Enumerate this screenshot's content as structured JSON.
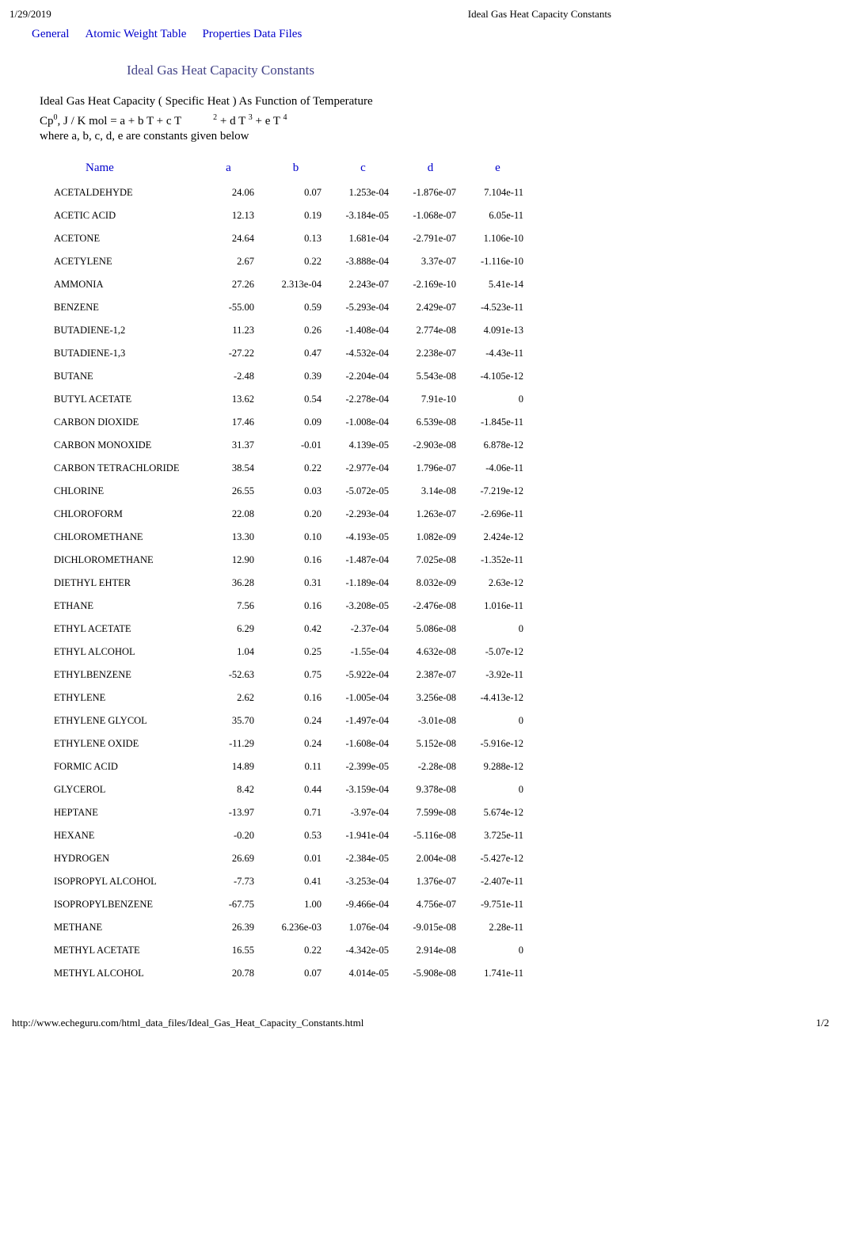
{
  "header": {
    "date": "1/29/2019",
    "title": "Ideal Gas Heat Capacity Constants"
  },
  "nav": {
    "general": "General",
    "atomic_weight": "Atomic Weight Table",
    "properties": "Properties Data Files"
  },
  "page_title": "Ideal Gas Heat Capacity Constants",
  "description": "Ideal Gas Heat Capacity ( Specific Heat ) As Function of Temperature",
  "formula_prefix": "Cp",
  "formula_sup0": "0",
  "formula_part1": ", J / K mol = a + b T + c T",
  "formula_sup2": "2",
  "formula_part2": " + d T ",
  "formula_sup3": "3",
  "formula_part3": " + e T ",
  "formula_sup4": "4",
  "sub_desc": "where a, b, c, d, e are constants given below",
  "table": {
    "headers": {
      "name": "Name",
      "a": "a",
      "b": "b",
      "c": "c",
      "d": "d",
      "e": "e"
    },
    "rows": [
      {
        "name": "ACETALDEHYDE",
        "a": "24.06",
        "b": "0.07",
        "c": "1.253e-04",
        "d": "-1.876e-07",
        "e": "7.104e-11"
      },
      {
        "name": "ACETIC ACID",
        "a": "12.13",
        "b": "0.19",
        "c": "-3.184e-05",
        "d": "-1.068e-07",
        "e": "6.05e-11"
      },
      {
        "name": "ACETONE",
        "a": "24.64",
        "b": "0.13",
        "c": "1.681e-04",
        "d": "-2.791e-07",
        "e": "1.106e-10"
      },
      {
        "name": "ACETYLENE",
        "a": "2.67",
        "b": "0.22",
        "c": "-3.888e-04",
        "d": "3.37e-07",
        "e": "-1.116e-10"
      },
      {
        "name": "AMMONIA",
        "a": "27.26",
        "b": "2.313e-04",
        "c": "2.243e-07",
        "d": "-2.169e-10",
        "e": "5.41e-14"
      },
      {
        "name": "BENZENE",
        "a": "-55.00",
        "b": "0.59",
        "c": "-5.293e-04",
        "d": "2.429e-07",
        "e": "-4.523e-11"
      },
      {
        "name": "BUTADIENE-1,2",
        "a": "11.23",
        "b": "0.26",
        "c": "-1.408e-04",
        "d": "2.774e-08",
        "e": "4.091e-13"
      },
      {
        "name": "BUTADIENE-1,3",
        "a": "-27.22",
        "b": "0.47",
        "c": "-4.532e-04",
        "d": "2.238e-07",
        "e": "-4.43e-11"
      },
      {
        "name": "BUTANE",
        "a": "-2.48",
        "b": "0.39",
        "c": "-2.204e-04",
        "d": "5.543e-08",
        "e": "-4.105e-12"
      },
      {
        "name": "BUTYL ACETATE",
        "a": "13.62",
        "b": "0.54",
        "c": "-2.278e-04",
        "d": "7.91e-10",
        "e": "0"
      },
      {
        "name": "CARBON DIOXIDE",
        "a": "17.46",
        "b": "0.09",
        "c": "-1.008e-04",
        "d": "6.539e-08",
        "e": "-1.845e-11"
      },
      {
        "name": "CARBON MONOXIDE",
        "a": "31.37",
        "b": "-0.01",
        "c": "4.139e-05",
        "d": "-2.903e-08",
        "e": "6.878e-12"
      },
      {
        "name": "CARBON TETRACHLORIDE",
        "a": "38.54",
        "b": "0.22",
        "c": "-2.977e-04",
        "d": "1.796e-07",
        "e": "-4.06e-11"
      },
      {
        "name": "CHLORINE",
        "a": "26.55",
        "b": "0.03",
        "c": "-5.072e-05",
        "d": "3.14e-08",
        "e": "-7.219e-12"
      },
      {
        "name": "CHLOROFORM",
        "a": "22.08",
        "b": "0.20",
        "c": "-2.293e-04",
        "d": "1.263e-07",
        "e": "-2.696e-11"
      },
      {
        "name": "CHLOROMETHANE",
        "a": "13.30",
        "b": "0.10",
        "c": "-4.193e-05",
        "d": "1.082e-09",
        "e": "2.424e-12"
      },
      {
        "name": "DICHLOROMETHANE",
        "a": "12.90",
        "b": "0.16",
        "c": "-1.487e-04",
        "d": "7.025e-08",
        "e": "-1.352e-11"
      },
      {
        "name": "DIETHYL EHTER",
        "a": "36.28",
        "b": "0.31",
        "c": "-1.189e-04",
        "d": "8.032e-09",
        "e": "2.63e-12"
      },
      {
        "name": "ETHANE",
        "a": "7.56",
        "b": "0.16",
        "c": "-3.208e-05",
        "d": "-2.476e-08",
        "e": "1.016e-11"
      },
      {
        "name": "ETHYL ACETATE",
        "a": "6.29",
        "b": "0.42",
        "c": "-2.37e-04",
        "d": "5.086e-08",
        "e": "0"
      },
      {
        "name": "ETHYL ALCOHOL",
        "a": "1.04",
        "b": "0.25",
        "c": "-1.55e-04",
        "d": "4.632e-08",
        "e": "-5.07e-12"
      },
      {
        "name": "ETHYLBENZENE",
        "a": "-52.63",
        "b": "0.75",
        "c": "-5.922e-04",
        "d": "2.387e-07",
        "e": "-3.92e-11"
      },
      {
        "name": "ETHYLENE",
        "a": "2.62",
        "b": "0.16",
        "c": "-1.005e-04",
        "d": "3.256e-08",
        "e": "-4.413e-12"
      },
      {
        "name": "ETHYLENE GLYCOL",
        "a": "35.70",
        "b": "0.24",
        "c": "-1.497e-04",
        "d": "-3.01e-08",
        "e": "0"
      },
      {
        "name": "ETHYLENE OXIDE",
        "a": "-11.29",
        "b": "0.24",
        "c": "-1.608e-04",
        "d": "5.152e-08",
        "e": "-5.916e-12"
      },
      {
        "name": "FORMIC ACID",
        "a": "14.89",
        "b": "0.11",
        "c": "-2.399e-05",
        "d": "-2.28e-08",
        "e": "9.288e-12"
      },
      {
        "name": "GLYCEROL",
        "a": "8.42",
        "b": "0.44",
        "c": "-3.159e-04",
        "d": "9.378e-08",
        "e": "0"
      },
      {
        "name": "HEPTANE",
        "a": "-13.97",
        "b": "0.71",
        "c": "-3.97e-04",
        "d": "7.599e-08",
        "e": "5.674e-12"
      },
      {
        "name": "HEXANE",
        "a": "-0.20",
        "b": "0.53",
        "c": "-1.941e-04",
        "d": "-5.116e-08",
        "e": "3.725e-11"
      },
      {
        "name": "HYDROGEN",
        "a": "26.69",
        "b": "0.01",
        "c": "-2.384e-05",
        "d": "2.004e-08",
        "e": "-5.427e-12"
      },
      {
        "name": "ISOPROPYL ALCOHOL",
        "a": "-7.73",
        "b": "0.41",
        "c": "-3.253e-04",
        "d": "1.376e-07",
        "e": "-2.407e-11"
      },
      {
        "name": "ISOPROPYLBENZENE",
        "a": "-67.75",
        "b": "1.00",
        "c": "-9.466e-04",
        "d": "4.756e-07",
        "e": "-9.751e-11"
      },
      {
        "name": "METHANE",
        "a": "26.39",
        "b": "6.236e-03",
        "c": "1.076e-04",
        "d": "-9.015e-08",
        "e": "2.28e-11"
      },
      {
        "name": "METHYL ACETATE",
        "a": "16.55",
        "b": "0.22",
        "c": "-4.342e-05",
        "d": "2.914e-08",
        "e": "0"
      },
      {
        "name": "METHYL ALCOHOL",
        "a": "20.78",
        "b": "0.07",
        "c": "4.014e-05",
        "d": "-5.908e-08",
        "e": "1.741e-11"
      }
    ]
  },
  "footer": {
    "url": "http://www.echeguru.com/html_data_files/Ideal_Gas_Heat_Capacity_Constants.html",
    "page": "1/2"
  }
}
